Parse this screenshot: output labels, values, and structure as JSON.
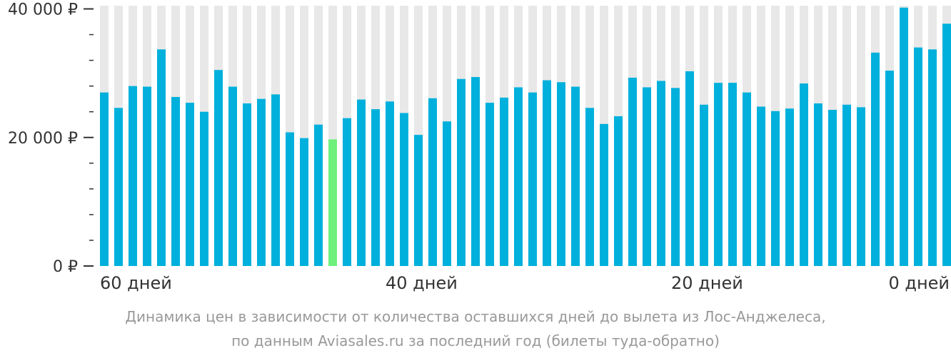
{
  "chart_data": {
    "type": "bar",
    "title": "",
    "xlabel": "",
    "ylabel": "",
    "ylim": [
      0,
      40500
    ],
    "yticks": [
      {
        "value": 0,
        "label": "0 ₽"
      },
      {
        "value": 20000,
        "label": "20 000 ₽"
      },
      {
        "value": 40000,
        "label": "40 000 ₽"
      }
    ],
    "yminor_step": 4000,
    "xtick_labels": [
      {
        "days": 60,
        "label": "60 дней"
      },
      {
        "days": 40,
        "label": "40 дней"
      },
      {
        "days": 20,
        "label": "20 дней"
      },
      {
        "days": 0,
        "label": "0 дней"
      }
    ],
    "grid": false,
    "colors": {
      "bar": "#00b0dc",
      "highlight": "#6ef07a",
      "background_bar": "#e8e8e8",
      "axis": "#333333"
    },
    "highlight_days": 44,
    "days": [
      60,
      59,
      58,
      57,
      56,
      55,
      54,
      53,
      52,
      51,
      50,
      49,
      48,
      47,
      46,
      45,
      44,
      43,
      42,
      41,
      40,
      39,
      38,
      37,
      36,
      35,
      34,
      33,
      32,
      31,
      30,
      29,
      28,
      27,
      26,
      25,
      24,
      23,
      22,
      21,
      20,
      19,
      18,
      17,
      16,
      15,
      14,
      13,
      12,
      11,
      10,
      9,
      8,
      7,
      6,
      5,
      4,
      3,
      2,
      1,
      0
    ],
    "values": [
      27000,
      24600,
      28000,
      27900,
      33700,
      26300,
      25400,
      24000,
      30500,
      27900,
      25300,
      26000,
      26700,
      20800,
      19900,
      22000,
      19700,
      23000,
      25900,
      24400,
      25600,
      23800,
      20400,
      26100,
      22500,
      29100,
      29400,
      25400,
      26200,
      27800,
      27000,
      28900,
      28600,
      27900,
      24600,
      22100,
      23300,
      29300,
      27800,
      28800,
      27700,
      30300,
      25100,
      28500,
      28500,
      27000,
      24800,
      24100,
      24500,
      28400,
      25300,
      24300,
      25100,
      24700,
      33200,
      30400,
      40200,
      34000,
      33700,
      37700,
      0
    ],
    "caption": [
      "Динамика цен в зависимости от количества оставшихся дней до вылета из Лос-Анджелеса,",
      "по данным Aviasales.ru за последний год (билеты туда-обратно)"
    ]
  }
}
